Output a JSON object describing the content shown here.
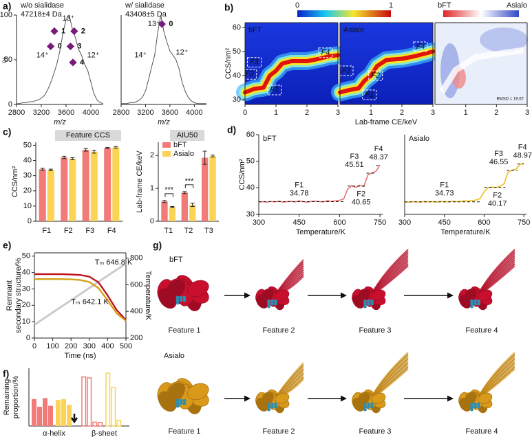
{
  "chart_data": [
    {
      "type": "spectrum",
      "panel": "a)",
      "title": "w/o sialidase",
      "subtitle": "47218±4 Da",
      "xlabel": "m/z",
      "ylabel": "%",
      "xlim": [
        2800,
        4200
      ],
      "xticks": [
        2800,
        3200,
        3600,
        4000
      ],
      "ylim": [
        0,
        100
      ],
      "yticks": [
        0,
        50,
        100
      ],
      "color": "#555555",
      "x": [
        2800,
        2850,
        2900,
        2950,
        3000,
        3050,
        3100,
        3150,
        3200,
        3250,
        3300,
        3350,
        3400,
        3450,
        3500,
        3550,
        3600,
        3650,
        3700,
        3750,
        3800,
        3850,
        3900,
        3950,
        4000,
        4050,
        4100,
        4150,
        4200
      ],
      "values": [
        1,
        1,
        2,
        2,
        3,
        3,
        4,
        5,
        7,
        10,
        16,
        24,
        34,
        45,
        60,
        80,
        95,
        100,
        85,
        75,
        62,
        55,
        45,
        38,
        25,
        12,
        5,
        2,
        1
      ],
      "annotations": [
        {
          "text": "13⁺",
          "x": 3640,
          "y": 96,
          "color": "#e0201b"
        },
        {
          "text": "14⁺",
          "x": 3220,
          "y": 55,
          "color": "#e0201b"
        },
        {
          "text": "12⁺",
          "x": 4040,
          "y": 55,
          "color": "#e0201b"
        }
      ],
      "peaks": [
        {
          "label": "1",
          "x": 3500,
          "y": 82
        },
        {
          "label": "2",
          "x": 3820,
          "y": 82
        },
        {
          "label": "0",
          "x": 3440,
          "y": 65
        },
        {
          "label": "3",
          "x": 3760,
          "y": 65
        },
        {
          "label": "4",
          "x": 3800,
          "y": 47
        }
      ]
    },
    {
      "type": "spectrum",
      "title": "w/ sialidase",
      "subtitle": "43408±5 Da",
      "xlabel": "m/z",
      "xlim": [
        2800,
        4200
      ],
      "xticks": [
        2800,
        3200,
        3600,
        4000
      ],
      "ylim": [
        0,
        100
      ],
      "color": "#555555",
      "x": [
        2800,
        2850,
        2900,
        2950,
        3000,
        3050,
        3100,
        3150,
        3200,
        3250,
        3300,
        3350,
        3400,
        3450,
        3500,
        3550,
        3600,
        3650,
        3700,
        3750,
        3800,
        3850,
        3900,
        3950,
        4000,
        4050,
        4100,
        4150,
        4200
      ],
      "values": [
        1,
        1,
        1,
        2,
        2,
        3,
        5,
        8,
        15,
        28,
        42,
        55,
        80,
        100,
        82,
        70,
        60,
        55,
        50,
        40,
        25,
        15,
        8,
        4,
        2,
        1,
        1,
        1,
        1
      ],
      "annotations": [
        {
          "text": "13⁺",
          "x": 3340,
          "y": 90,
          "color": "#e0201b"
        },
        {
          "text": "14⁺",
          "x": 3120,
          "y": 55,
          "color": "#e0201b"
        },
        {
          "text": "12⁺",
          "x": 3800,
          "y": 58,
          "color": "#e0201b"
        }
      ],
      "peaks": [
        {
          "label": "0",
          "x": 3560,
          "y": 90
        }
      ]
    },
    {
      "type": "ridge",
      "panel": "b)",
      "label": "bFT",
      "xlabel": "Lab-frame CE/keV",
      "ylabel": "CCS/nm²",
      "colorbar": [
        "0",
        "1"
      ],
      "xlim": [
        0,
        3
      ],
      "xticks": [
        0,
        1,
        2,
        3
      ],
      "ylim": [
        28,
        62
      ],
      "yticks": [
        30,
        40,
        50,
        60
      ],
      "x": [
        0,
        0.3,
        0.6,
        0.8,
        1.0,
        1.2,
        1.5,
        2.0,
        2.4,
        2.7,
        3.0
      ],
      "values": [
        33,
        34.5,
        35,
        40,
        42,
        45,
        46,
        46,
        47,
        48,
        48.5
      ],
      "features": [
        {
          "label": "F1",
          "x": 0.95,
          "y": 34
        },
        {
          "label": "F2",
          "x": 0.15,
          "y": 40.5
        },
        {
          "label": "F3",
          "x": 0.3,
          "y": 45.5
        },
        {
          "label": "F4",
          "x": 2.6,
          "y": 49.5
        }
      ]
    },
    {
      "type": "ridge",
      "label": "Asialo",
      "xlim": [
        0,
        3
      ],
      "xticks": [
        1,
        2,
        3
      ],
      "ylim": [
        28,
        62
      ],
      "x": [
        0,
        0.3,
        0.6,
        0.8,
        1.0,
        1.2,
        1.5,
        2.0,
        2.4,
        2.7,
        3.0
      ],
      "values": [
        33,
        34,
        34.7,
        38,
        40,
        44,
        46.5,
        47,
        48,
        49,
        50
      ],
      "features": [
        {
          "label": "F1",
          "x": 0.95,
          "y": 32
        },
        {
          "label": "F2",
          "x": 1.15,
          "y": 40
        },
        {
          "label": "F3",
          "x": 0.2,
          "y": 42
        },
        {
          "label": "F4",
          "x": 2.6,
          "y": 52
        }
      ]
    },
    {
      "type": "diff",
      "colorbar": [
        "bFT",
        "Asialo"
      ],
      "note": "RMSD = 19.67",
      "xlim": [
        0,
        3
      ],
      "xticks": [
        1,
        2,
        3
      ],
      "ylim": [
        28,
        62
      ]
    },
    {
      "type": "bar",
      "panel": "c)",
      "title": "Feature CCS",
      "ylabel": "CCS/nm²",
      "categories": [
        "F1",
        "F2",
        "F3",
        "F4"
      ],
      "ylim": [
        0,
        52
      ],
      "yticks": [
        0,
        10,
        20,
        30,
        40,
        50
      ],
      "series": [
        {
          "color": "#f27b78",
          "values": [
            34.2,
            42,
            47,
            48.2
          ],
          "errors": [
            0.6,
            0.8,
            0.9,
            0.4
          ]
        },
        {
          "color": "#fcd455",
          "values": [
            33.8,
            41.2,
            45.8,
            48.6
          ],
          "errors": [
            0.5,
            0.7,
            1,
            0.6
          ]
        }
      ]
    },
    {
      "type": "bar",
      "title": "AIU50",
      "ylabel": "Lab-frame CE/keV",
      "categories": [
        "T1",
        "T2",
        "T3"
      ],
      "legend": "top-left",
      "ylim": [
        0,
        2.4
      ],
      "yticks": [
        0,
        1,
        2
      ],
      "series": [
        {
          "name": "bFT",
          "color": "#f27b78",
          "values": [
            0.6,
            0.87,
            1.93
          ],
          "errors": [
            0.03,
            0.03,
            0.2
          ]
        },
        {
          "name": "Asialo",
          "color": "#fcd455",
          "values": [
            0.43,
            0.5,
            1.98
          ],
          "errors": [
            0.02,
            0.05,
            0.03
          ]
        }
      ],
      "significance": [
        {
          "text": "***",
          "category": 0
        },
        {
          "text": "***",
          "category": 1
        }
      ]
    },
    {
      "type": "trace",
      "panel": "d)",
      "label": "bFT",
      "xlabel": "Temperature/K",
      "ylabel": "CCS/nm²",
      "color": "#f07070",
      "xlim": [
        300,
        760
      ],
      "xticks": [
        300,
        450,
        600,
        750
      ],
      "ylim": [
        30,
        60
      ],
      "yticks": [
        30,
        40,
        50,
        60
      ],
      "x": [
        300,
        315,
        330,
        345,
        360,
        375,
        390,
        405,
        420,
        435,
        450,
        465,
        480,
        495,
        510,
        525,
        540,
        555,
        570,
        585,
        600,
        615,
        630,
        645,
        660,
        675,
        690,
        705,
        720,
        735,
        750
      ],
      "values": [
        34.5,
        34.8,
        34.6,
        34.9,
        34.7,
        35.0,
        34.6,
        34.8,
        34.9,
        34.7,
        35.1,
        34.8,
        34.6,
        34.9,
        35.0,
        34.8,
        34.7,
        35.2,
        34.9,
        35.1,
        35.3,
        35.8,
        39.5,
        40.8,
        40.2,
        41.0,
        40.5,
        44.8,
        45.6,
        46.2,
        48.6
      ],
      "features": [
        {
          "name": "F1",
          "value": 34.78,
          "range": [
            300,
            620
          ],
          "x": 450,
          "side": "above"
        },
        {
          "name": "F2",
          "value": 40.65,
          "range": [
            630,
            700
          ],
          "x": 680,
          "side": "below"
        },
        {
          "name": "F3",
          "value": 45.51,
          "range": [
            700,
            735
          ],
          "x": 655,
          "side": "above"
        },
        {
          "name": "F4",
          "value": 48.37,
          "range": [
            735,
            750
          ],
          "x": 745,
          "side": "above"
        }
      ]
    },
    {
      "type": "trace",
      "label": "Asialo",
      "xlabel": "Temperature/K",
      "color": "#f2bd1d",
      "xlim": [
        300,
        760
      ],
      "xticks": [
        300,
        450,
        600,
        750
      ],
      "ylim": [
        30,
        60
      ],
      "x": [
        300,
        315,
        330,
        345,
        360,
        375,
        390,
        405,
        420,
        435,
        450,
        465,
        480,
        495,
        510,
        525,
        540,
        555,
        570,
        585,
        600,
        615,
        630,
        645,
        660,
        675,
        690,
        705,
        720,
        735,
        750
      ],
      "values": [
        34.5,
        34.6,
        34.8,
        34.7,
        34.6,
        34.9,
        34.7,
        34.8,
        34.6,
        34.9,
        34.8,
        34.7,
        35.0,
        34.8,
        34.9,
        35.1,
        35.0,
        35.2,
        35.4,
        36.0,
        38.5,
        40.0,
        40.3,
        40.1,
        40.6,
        41.5,
        45.8,
        46.6,
        47.0,
        48.8,
        49.2
      ],
      "features": [
        {
          "name": "F1",
          "value": 34.73,
          "range": [
            300,
            590
          ],
          "x": 450,
          "side": "above"
        },
        {
          "name": "F2",
          "value": 40.17,
          "range": [
            600,
            680
          ],
          "x": 650,
          "side": "below"
        },
        {
          "name": "F3",
          "value": 46.55,
          "range": [
            685,
            725
          ],
          "x": 655,
          "side": "above"
        },
        {
          "name": "F4",
          "value": 48.97,
          "range": [
            725,
            750
          ],
          "x": 745,
          "side": "above"
        }
      ]
    },
    {
      "type": "dual",
      "panel": "e)",
      "xlabel": "Time (ns)",
      "ylabel": [
        "Remnant",
        "secondary structure/%"
      ],
      "y2label": "Temperature/K",
      "xlim": [
        0,
        500
      ],
      "xticks": [
        0,
        100,
        200,
        300,
        400,
        500
      ],
      "ylim": [
        0,
        52
      ],
      "yticks": [
        0,
        10,
        20,
        30,
        40,
        50
      ],
      "y2lim": [
        200,
        840
      ],
      "y2ticks": [
        200,
        400,
        600,
        800
      ],
      "x": [
        0,
        50,
        100,
        150,
        200,
        250,
        300,
        350,
        400,
        450,
        500
      ],
      "series": [
        {
          "color": "#c0141e",
          "values": [
            39,
            39,
            39,
            39,
            38.8,
            38.5,
            37.5,
            34,
            26,
            17,
            11
          ]
        },
        {
          "color": "#d4a017",
          "values": [
            36,
            36,
            36,
            36,
            35.8,
            35.4,
            34.2,
            30.5,
            23,
            15,
            10.5
          ]
        },
        {
          "color": "#b5b5b5",
          "axis": "y2",
          "values": [
            300,
            346,
            392,
            438,
            484,
            530,
            576,
            622,
            668,
            714,
            760
          ]
        }
      ],
      "annotations": [
        {
          "text": "Tₘ 646.8 K",
          "x": 330,
          "y": 46,
          "color": "#c0141e"
        },
        {
          "text": "Tₘ 642.1 K",
          "x": 200,
          "y": 22,
          "color": "#a07a10"
        }
      ]
    },
    {
      "type": "hollowbar",
      "panel": "f)",
      "ylabel": [
        "Remaining",
        "proportion/%"
      ],
      "categories": [
        "α-helix",
        "β-sheet"
      ],
      "ylim": [
        0,
        30
      ],
      "series": [
        {
          "color": "#f27b78",
          "values": [
            [
              14,
              10,
              14.5,
              10.5
            ],
            [
              25.5,
              25,
              2,
              1.8
            ]
          ]
        },
        {
          "color": "#fcd455",
          "values": [
            [
              13.5,
              14,
              11
            ],
            [
              27.5,
              20,
              3
            ]
          ]
        }
      ]
    }
  ],
  "figure_g": {
    "panel": "g)",
    "rows": [
      {
        "label": "bFT",
        "features": [
          "Feature 1",
          "Feature 2",
          "Feature 3",
          "Feature 4"
        ]
      },
      {
        "label": "Asialo",
        "features": [
          "Feature 1",
          "Feature 2",
          "Feature 3",
          "Feature 4"
        ]
      }
    ]
  }
}
